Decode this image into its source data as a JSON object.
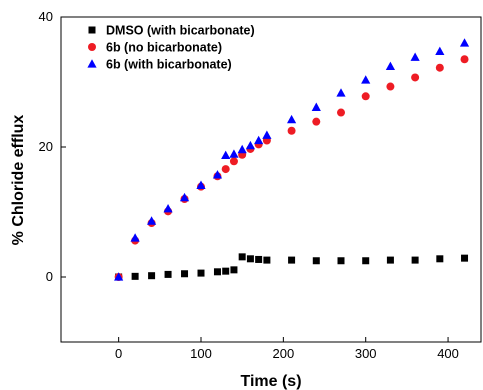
{
  "chart_data": {
    "type": "scatter",
    "xlabel": "Time (s)",
    "ylabel": "% Chloride efflux",
    "xlim": [
      -70,
      440
    ],
    "ylim": [
      -10,
      40
    ],
    "x_ticks": [
      0,
      100,
      200,
      300,
      400
    ],
    "y_ticks": [
      0,
      20,
      40
    ],
    "legend_position": "top-left",
    "series": [
      {
        "name": "DMSO (with bicarbonate)",
        "marker": "square",
        "color": "#000000",
        "x": [
          0,
          20,
          40,
          60,
          80,
          100,
          120,
          130,
          140,
          150,
          160,
          170,
          180,
          210,
          240,
          270,
          300,
          330,
          360,
          390,
          420
        ],
        "y": [
          0,
          0.1,
          0.2,
          0.4,
          0.5,
          0.6,
          0.8,
          0.9,
          1.1,
          3.1,
          2.8,
          2.7,
          2.6,
          2.6,
          2.5,
          2.5,
          2.5,
          2.6,
          2.6,
          2.8,
          2.9
        ]
      },
      {
        "name": "6b (no bicarbonate)",
        "marker": "circle",
        "color": "#ee1c24",
        "x": [
          0,
          20,
          40,
          60,
          80,
          100,
          120,
          130,
          140,
          150,
          160,
          170,
          180,
          210,
          240,
          270,
          300,
          330,
          360,
          390,
          420
        ],
        "y": [
          0,
          5.6,
          8.3,
          10.1,
          12.0,
          13.9,
          15.5,
          16.6,
          17.8,
          18.8,
          19.7,
          20.4,
          21.0,
          22.5,
          23.9,
          25.3,
          27.8,
          29.3,
          30.7,
          32.2,
          33.5
        ]
      },
      {
        "name": "6b (with bicarbonate)",
        "marker": "triangle",
        "color": "#0000ff",
        "x": [
          0,
          20,
          40,
          60,
          80,
          100,
          120,
          130,
          140,
          150,
          160,
          170,
          180,
          210,
          240,
          270,
          300,
          330,
          360,
          390,
          420
        ],
        "y": [
          0,
          6.0,
          8.6,
          10.5,
          12.2,
          14.1,
          15.7,
          18.7,
          18.9,
          19.6,
          20.2,
          21.0,
          21.8,
          24.2,
          26.1,
          28.3,
          30.3,
          32.4,
          33.8,
          34.7,
          36.0
        ]
      }
    ]
  }
}
